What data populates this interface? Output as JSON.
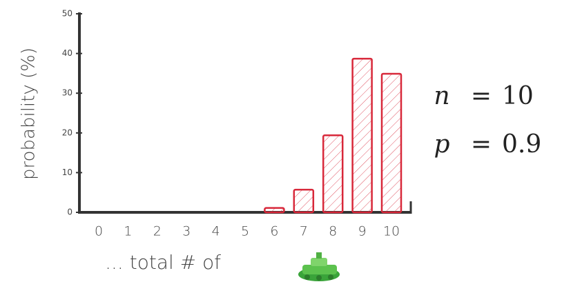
{
  "chart_data": {
    "type": "bar",
    "ylabel": "probability (%)",
    "xlabel": "... total # of",
    "categories": [
      "0",
      "1",
      "2",
      "3",
      "4",
      "5",
      "6",
      "7",
      "8",
      "9",
      "10"
    ],
    "values": [
      0,
      0,
      0,
      0,
      0,
      0,
      1.1,
      5.7,
      19.4,
      38.7,
      34.9
    ],
    "color": "#d8283a",
    "ylim": [
      0,
      50
    ],
    "yticks": [
      0,
      10,
      20,
      30,
      40,
      50
    ],
    "annotations": [
      {
        "symbol": "n",
        "relation": "=",
        "value": "10"
      },
      {
        "symbol": "p",
        "relation": "=",
        "value": "0.9"
      }
    ]
  }
}
